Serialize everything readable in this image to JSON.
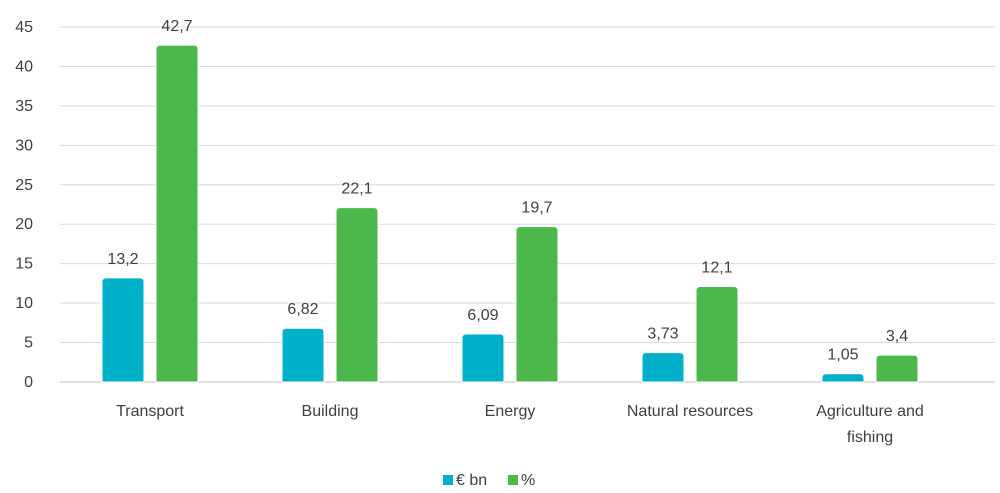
{
  "chart_data": {
    "type": "bar",
    "categories": [
      "Transport",
      "Building",
      "Energy",
      "Natural resources",
      "Agriculture and fishing"
    ],
    "category_lines": [
      [
        "Transport"
      ],
      [
        "Building"
      ],
      [
        "Energy"
      ],
      [
        "Natural resources"
      ],
      [
        "Agriculture and",
        "fishing"
      ]
    ],
    "series": [
      {
        "name": "€ bn",
        "values": [
          13.2,
          6.82,
          6.09,
          3.73,
          1.05
        ],
        "labels": [
          "13,2",
          "6,82",
          "6,09",
          "3,73",
          "1,05"
        ],
        "color": "#00B0C8"
      },
      {
        "name": "%",
        "values": [
          42.7,
          22.1,
          19.7,
          12.1,
          3.4
        ],
        "labels": [
          "42,7",
          "22,1",
          "19,7",
          "12,1",
          "3,4"
        ],
        "color": "#4CB84C"
      }
    ],
    "ylim": [
      0,
      45
    ],
    "yticks": [
      0,
      5,
      10,
      15,
      20,
      25,
      30,
      35,
      40,
      45
    ],
    "grid": true,
    "legend_position": "bottom",
    "title": "",
    "xlabel": "",
    "ylabel": ""
  }
}
